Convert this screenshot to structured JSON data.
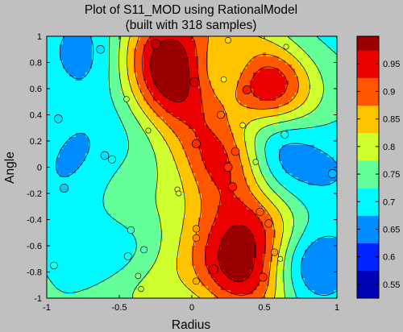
{
  "chart_data": {
    "type": "heatmap",
    "subtype": "filled-contour",
    "title_lines": [
      "Plot of S11_MOD using RationalModel",
      "(built with 318 samples)"
    ],
    "xlabel": "Radius",
    "ylabel": "Angle",
    "xlim": [
      -1,
      1
    ],
    "ylim": [
      -1,
      1
    ],
    "x_ticks": [
      -1,
      -0.5,
      0,
      0.5,
      1
    ],
    "x_tick_labels": [
      "-1",
      "-0.5",
      "0",
      "0.5",
      "1"
    ],
    "y_ticks": [
      -1,
      -0.8,
      -0.6,
      -0.4,
      -0.2,
      0,
      0.2,
      0.4,
      0.6,
      0.8,
      1
    ],
    "y_tick_labels": [
      "-1",
      "-0.8",
      "-0.6",
      "-0.4",
      "-0.2",
      "0",
      "0.2",
      "0.4",
      "0.6",
      "0.8",
      "1"
    ],
    "colorbar": {
      "range": [
        0.525,
        1.0
      ],
      "ticks": [
        0.55,
        0.6,
        0.65,
        0.7,
        0.75,
        0.8,
        0.85,
        0.9,
        0.95
      ],
      "tick_labels": [
        "0.55",
        "0.6",
        "0.65",
        "0.7",
        "0.75",
        "0.8",
        "0.85",
        "0.9",
        "0.95"
      ],
      "colormap": "jet"
    },
    "contour_levels": [
      0.525,
      0.575,
      0.625,
      0.675,
      0.725,
      0.775,
      0.825,
      0.875,
      0.925,
      0.975,
      1.0
    ],
    "samples": [
      {
        "x": -0.95,
        "y": -0.75,
        "v": 0.72
      },
      {
        "x": -0.92,
        "y": 0.37,
        "v": 0.69
      },
      {
        "x": -0.88,
        "y": -0.16,
        "v": 0.68
      },
      {
        "x": -0.6,
        "y": 0.09,
        "v": 0.69
      },
      {
        "x": -0.63,
        "y": 0.9,
        "v": 0.69
      },
      {
        "x": -0.55,
        "y": 0.06,
        "v": 0.71
      },
      {
        "x": -0.45,
        "y": 0.52,
        "v": 0.78
      },
      {
        "x": -0.42,
        "y": -0.48,
        "v": 0.73
      },
      {
        "x": -0.37,
        "y": -0.83,
        "v": 0.77
      },
      {
        "x": -0.35,
        "y": -0.93,
        "v": 0.78
      },
      {
        "x": -0.33,
        "y": -0.63,
        "v": 0.74
      },
      {
        "x": -0.44,
        "y": -0.68,
        "v": 0.71
      },
      {
        "x": -0.3,
        "y": 0.28,
        "v": 0.79
      },
      {
        "x": -0.25,
        "y": 0.94,
        "v": 0.97
      },
      {
        "x": -0.1,
        "y": -0.17,
        "v": 0.81
      },
      {
        "x": -0.09,
        "y": -0.2,
        "v": 0.81
      },
      {
        "x": 0.02,
        "y": 0.65,
        "v": 0.96
      },
      {
        "x": 0.03,
        "y": 0.18,
        "v": 0.92
      },
      {
        "x": 0.03,
        "y": -0.47,
        "v": 0.87
      },
      {
        "x": 0.03,
        "y": -0.54,
        "v": 0.88
      },
      {
        "x": 0.03,
        "y": -0.87,
        "v": 0.86
      },
      {
        "x": 0.15,
        "y": -0.78,
        "v": 0.95
      },
      {
        "x": 0.2,
        "y": 0.4,
        "v": 0.89
      },
      {
        "x": 0.22,
        "y": 0.67,
        "v": 0.82
      },
      {
        "x": 0.25,
        "y": 0.0,
        "v": 0.92
      },
      {
        "x": 0.25,
        "y": 0.97,
        "v": 0.84
      },
      {
        "x": 0.28,
        "y": -0.15,
        "v": 0.93
      },
      {
        "x": 0.3,
        "y": 0.12,
        "v": 0.91
      },
      {
        "x": 0.35,
        "y": 0.32,
        "v": 0.82
      },
      {
        "x": 0.38,
        "y": 0.59,
        "v": 0.93
      },
      {
        "x": 0.44,
        "y": 0.04,
        "v": 0.78
      },
      {
        "x": 0.47,
        "y": -0.34,
        "v": 0.9
      },
      {
        "x": 0.49,
        "y": -0.84,
        "v": 0.92
      },
      {
        "x": 0.53,
        "y": -0.43,
        "v": 0.9
      },
      {
        "x": 0.57,
        "y": -0.65,
        "v": 0.87
      },
      {
        "x": 0.61,
        "y": -0.7,
        "v": 0.79
      },
      {
        "x": 0.64,
        "y": 0.25,
        "v": 0.71
      },
      {
        "x": 0.65,
        "y": 0.92,
        "v": 0.81
      },
      {
        "x": 0.97,
        "y": -0.05,
        "v": 0.67
      }
    ]
  }
}
